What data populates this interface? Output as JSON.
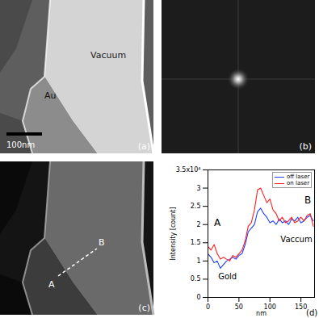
{
  "panels": [
    {
      "label": "(a)",
      "texts": [
        "Vacuum",
        "Au"
      ],
      "scale_bar": "100nm"
    },
    {
      "label": "(b)"
    },
    {
      "label": "(c)",
      "line": {
        "start": "A",
        "end": "B"
      }
    }
  ],
  "chart_data": {
    "type": "line",
    "panel_label": "(d)",
    "xlabel": "nm",
    "ylabel": "Intensity [count]",
    "x": [
      0,
      5,
      10,
      15,
      20,
      25,
      30,
      35,
      40,
      45,
      50,
      55,
      60,
      65,
      70,
      75,
      80,
      85,
      90,
      95,
      100,
      105,
      110,
      115,
      120,
      125,
      130,
      135,
      140,
      145,
      150,
      155,
      160,
      165,
      170
    ],
    "series": [
      {
        "name": "off laser",
        "color": "#1f3fff",
        "values": [
          1.2,
          1.1,
          0.95,
          1.0,
          0.8,
          0.9,
          1.0,
          1.05,
          1.1,
          1.05,
          1.15,
          1.2,
          1.45,
          1.8,
          1.9,
          2.0,
          2.35,
          2.45,
          2.3,
          2.2,
          2.05,
          2.1,
          2.0,
          2.15,
          2.05,
          2.1,
          2.0,
          2.15,
          2.1,
          2.2,
          2.05,
          2.1,
          2.2,
          2.25,
          2.1
        ]
      },
      {
        "name": "on laser",
        "color": "#ff2020",
        "values": [
          1.4,
          1.3,
          1.45,
          1.2,
          1.05,
          1.1,
          1.05,
          1.0,
          1.15,
          1.1,
          1.2,
          1.3,
          1.55,
          1.95,
          2.05,
          2.4,
          2.95,
          3.0,
          2.8,
          2.6,
          2.7,
          2.4,
          2.3,
          2.1,
          2.2,
          2.05,
          2.1,
          2.2,
          2.05,
          2.1,
          2.2,
          2.1,
          2.25,
          2.3,
          1.95
        ]
      }
    ],
    "xlim": [
      0,
      172
    ],
    "xticks": [
      0,
      50,
      100,
      150
    ],
    "ylim": [
      0,
      3.5
    ],
    "yticks": [
      0,
      0.5,
      1,
      1.5,
      2,
      2.5,
      3,
      {
        "value": 3.5,
        "label": "3.5x10⁴"
      }
    ],
    "legend": "top-right",
    "annotations": [
      "A",
      "Gold",
      "Vaccum",
      "B"
    ]
  }
}
